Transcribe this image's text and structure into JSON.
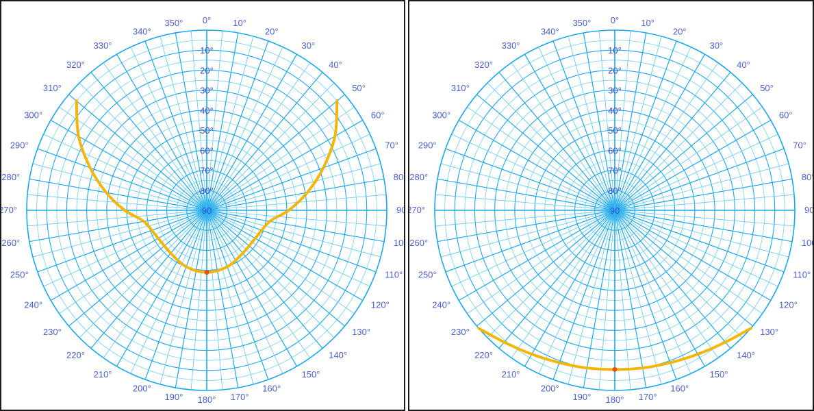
{
  "style": {
    "grid_color": "#1aa7ec",
    "minor_grid_color": "#5cc6f2",
    "label_color": "#4a5fcf",
    "sun_path_color": "#f5b50a",
    "marker_color": "#e8501a",
    "frame_color": "#1a1a1a"
  },
  "chart_data": [
    {
      "type": "polar",
      "title": "",
      "azimuth_labels": [
        "0°",
        "10°",
        "20°",
        "30°",
        "40°",
        "50°",
        "60°",
        "70°",
        "80°",
        "90°",
        "100°",
        "110°",
        "120°",
        "130°",
        "140°",
        "150°",
        "160°",
        "170°",
        "180°",
        "190°",
        "200°",
        "210°",
        "220°",
        "230°",
        "240°",
        "250°",
        "260°",
        "270°",
        "280°",
        "290°",
        "300°",
        "310°",
        "320°",
        "330°",
        "340°",
        "350°"
      ],
      "altitude_labels": [
        "10°",
        "20°",
        "30°",
        "40°",
        "50°",
        "60°",
        "70°",
        "80°",
        "90"
      ],
      "altitude_values": [
        10,
        20,
        30,
        40,
        50,
        60,
        70,
        80,
        90
      ],
      "grid": true,
      "series": [
        {
          "points": [
            {
              "azimuth": 50,
              "altitude": 5
            },
            {
              "azimuth": 60,
              "altitude": 16
            },
            {
              "azimuth": 70,
              "altitude": 28
            },
            {
              "azimuth": 80,
              "altitude": 39
            },
            {
              "azimuth": 90,
              "altitude": 49
            },
            {
              "azimuth": 100,
              "altitude": 58
            },
            {
              "azimuth": 120,
              "altitude": 62
            },
            {
              "azimuth": 140,
              "altitude": 62
            },
            {
              "azimuth": 160,
              "altitude": 60
            },
            {
              "azimuth": 180,
              "altitude": 59
            },
            {
              "azimuth": 200,
              "altitude": 60
            },
            {
              "azimuth": 220,
              "altitude": 62
            },
            {
              "azimuth": 240,
              "altitude": 62
            },
            {
              "azimuth": 260,
              "altitude": 58
            },
            {
              "azimuth": 270,
              "altitude": 49
            },
            {
              "azimuth": 280,
              "altitude": 39
            },
            {
              "azimuth": 290,
              "altitude": 28
            },
            {
              "azimuth": 300,
              "altitude": 16
            },
            {
              "azimuth": 310,
              "altitude": 5
            }
          ],
          "marker": {
            "azimuth": 180,
            "altitude": 59
          }
        }
      ]
    },
    {
      "type": "polar",
      "title": "",
      "azimuth_labels": [
        "0°",
        "10°",
        "20°",
        "30°",
        "40°",
        "50°",
        "60°",
        "70°",
        "80°",
        "90°",
        "100°",
        "110°",
        "120°",
        "130°",
        "140°",
        "150°",
        "160°",
        "170°",
        "180°",
        "190°",
        "200°",
        "210°",
        "220°",
        "230°",
        "240°",
        "250°",
        "260°",
        "270°",
        "280°",
        "290°",
        "300°",
        "310°",
        "320°",
        "330°",
        "340°",
        "350°"
      ],
      "altitude_labels": [
        "10°",
        "20°",
        "30°",
        "40°",
        "50°",
        "60°",
        "70°",
        "80°",
        "90"
      ],
      "altitude_values": [
        10,
        20,
        30,
        40,
        50,
        60,
        70,
        80,
        90
      ],
      "grid": true,
      "series": [
        {
          "points": [
            {
              "azimuth": 131,
              "altitude": 0
            },
            {
              "azimuth": 140,
              "altitude": 4
            },
            {
              "azimuth": 150,
              "altitude": 7
            },
            {
              "azimuth": 160,
              "altitude": 9
            },
            {
              "azimuth": 170,
              "altitude": 10
            },
            {
              "azimuth": 180,
              "altitude": 10.5
            },
            {
              "azimuth": 190,
              "altitude": 10
            },
            {
              "azimuth": 200,
              "altitude": 9
            },
            {
              "azimuth": 210,
              "altitude": 7
            },
            {
              "azimuth": 220,
              "altitude": 4
            },
            {
              "azimuth": 229,
              "altitude": 0
            }
          ],
          "marker": {
            "azimuth": 180,
            "altitude": 10.5
          }
        }
      ]
    }
  ]
}
